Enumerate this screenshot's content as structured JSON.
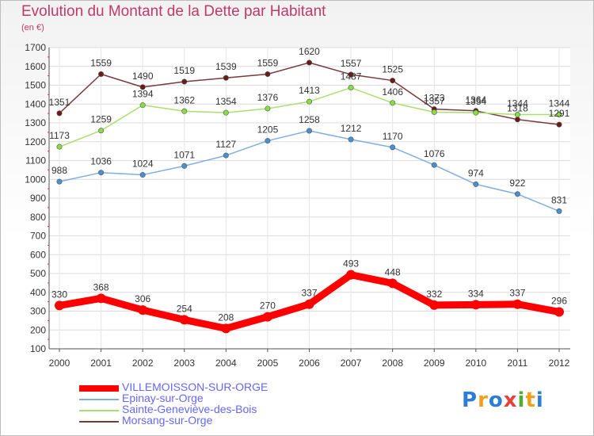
{
  "title": "Evolution du Montant de la Dette par Habitant",
  "subtitle": "(en €)",
  "logo": {
    "letters": [
      "P",
      "r",
      "o",
      "x",
      "i",
      "t",
      "i"
    ],
    "colors": [
      "#2a7fd4",
      "#f0a020",
      "#2a7fd4",
      "#e8403a",
      "#55aa33",
      "#f0a020",
      "#2a7fd4"
    ]
  },
  "chart_data": {
    "type": "line",
    "x": [
      "2000",
      "2001",
      "2002",
      "2003",
      "2004",
      "2005",
      "2006",
      "2007",
      "2008",
      "2009",
      "2010",
      "2011",
      "2012"
    ],
    "ylim": [
      100,
      1700
    ],
    "yticks": [
      100,
      200,
      300,
      400,
      500,
      600,
      700,
      800,
      900,
      1000,
      1100,
      1200,
      1300,
      1400,
      1500,
      1600,
      1700
    ],
    "grid": true,
    "legend_position": "bottom",
    "series": [
      {
        "name": "VILLEMOISSON-SUR-ORGE",
        "color": "#ff0000",
        "line_color": "#ff0000",
        "values": [
          330,
          368,
          306,
          254,
          208,
          270,
          337,
          493,
          448,
          332,
          334,
          337,
          296
        ]
      },
      {
        "name": "Epinay-sur-Orge",
        "color": "#4a90d0",
        "line_color": "#80aede",
        "values": [
          988,
          1036,
          1024,
          1071,
          1127,
          1205,
          1258,
          1212,
          1170,
          1076,
          974,
          922,
          831
        ]
      },
      {
        "name": "Sainte-Geneviève-des-Bois",
        "color": "#88dd44",
        "line_color": "#a8e070",
        "values": [
          1173,
          1259,
          1394,
          1362,
          1354,
          1376,
          1413,
          1487,
          1406,
          1357,
          1354,
          1344,
          1344
        ]
      },
      {
        "name": "Morsang-sur-Orge",
        "color": "#6b1a1a",
        "line_color": "#7a3a3a",
        "values": [
          1351,
          1559,
          1490,
          1519,
          1539,
          1559,
          1620,
          1557,
          1525,
          1373,
          1364,
          1318,
          1291
        ]
      }
    ]
  }
}
